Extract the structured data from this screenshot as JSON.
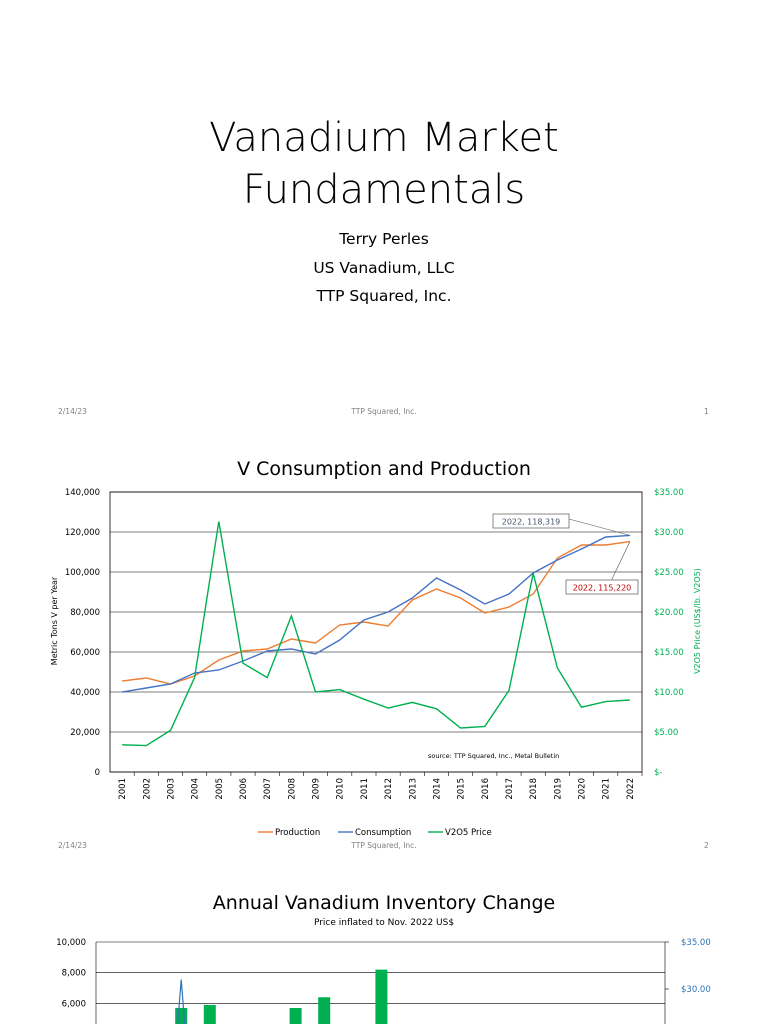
{
  "slide1": {
    "title_line1": "Vanadium Market",
    "title_line2": "Fundamentals",
    "author": "Terry Perles",
    "company1": "US Vanadium, LLC",
    "company2": "TTP Squared, Inc.",
    "footer_date": "2/14/23",
    "footer_center": "TTP Squared, Inc.",
    "footer_page": "1"
  },
  "slide2": {
    "title": "V Consumption and Production",
    "footer_date": "2/14/23",
    "footer_center": "TTP Squared, Inc.",
    "footer_page": "2"
  },
  "slide3": {
    "title": "Annual Vanadium Inventory Change",
    "subtitle": "Price inflated to Nov. 2022 US$"
  },
  "chart_data": [
    {
      "type": "line",
      "title": "V Consumption and Production",
      "ylabel": "Metric Tons V per Year",
      "y2label": "V2O5 Price (US$/lb. V2O5)",
      "ylim": [
        0,
        140000
      ],
      "y2lim": [
        0,
        35
      ],
      "yticks": [
        "140,000",
        "120,000",
        "100,000",
        "80,000",
        "60,000",
        "40,000",
        "20,000",
        "0"
      ],
      "y2ticks": [
        "$35.00",
        "$30.00",
        "$25.00",
        "$20.00",
        "$15.00",
        "$10.00",
        "$5.00",
        "$-"
      ],
      "x": [
        "2001",
        "2002",
        "2003",
        "2004",
        "2005",
        "2006",
        "2007",
        "2008",
        "2009",
        "2010",
        "2011",
        "2012",
        "2013",
        "2014",
        "2015",
        "2016",
        "2017",
        "2018",
        "2019",
        "2020",
        "2021",
        "2022"
      ],
      "series": [
        {
          "name": "Production",
          "axis": "left",
          "color": "#ED7D31",
          "values": [
            45500,
            47000,
            44000,
            48000,
            56000,
            60500,
            61500,
            66500,
            64500,
            73500,
            75000,
            73000,
            86000,
            91500,
            87000,
            79500,
            82500,
            89000,
            107000,
            113500,
            113500,
            115220
          ]
        },
        {
          "name": "Consumption",
          "axis": "left",
          "color": "#4472C4",
          "values": [
            40000,
            42000,
            44000,
            49500,
            51000,
            55500,
            60500,
            61500,
            59000,
            66000,
            76000,
            80000,
            87000,
            97000,
            91000,
            84000,
            89000,
            99500,
            106000,
            111500,
            117500,
            118319
          ]
        },
        {
          "name": "V2O5 Price",
          "axis": "right",
          "color": "#00B050",
          "values": [
            3.4,
            3.3,
            5.2,
            11.8,
            31.3,
            13.6,
            11.8,
            19.5,
            10.0,
            10.3,
            9.1,
            8.0,
            8.7,
            7.9,
            5.5,
            5.7,
            10.2,
            24.8,
            13.0,
            8.1,
            8.8,
            9.0
          ]
        }
      ],
      "annotations": [
        {
          "text": "2022,  118,319",
          "series": "Consumption",
          "x": "2022",
          "color": "#44546A"
        },
        {
          "text": "2022,  115,220",
          "series": "Production",
          "x": "2022",
          "color": "#C00000"
        }
      ],
      "source_note": "source:  TTP Squared, Inc., Metal Bulletin",
      "legend_position": "bottom",
      "accent_colors": {
        "y2_axis": "#00B050"
      }
    },
    {
      "type": "bar",
      "title": "Annual Vanadium Inventory Change",
      "subtitle": "Price inflated to Nov. 2022 US$",
      "yticks_visible": [
        "10,000",
        "8,000",
        "6,000"
      ],
      "y2ticks_visible": [
        "$35.00",
        "$30.00"
      ],
      "ylim_visible": [
        5200,
        10000
      ],
      "y2lim_visible": [
        25.5,
        35
      ],
      "bar_color": "#00B050",
      "line_color": "#2E75B6",
      "bars_visible": [
        {
          "index": 2,
          "value": 5700
        },
        {
          "index": 3,
          "value": 5900
        },
        {
          "index": 6,
          "value": 5700
        },
        {
          "index": 7,
          "value": 6400
        },
        {
          "index": 9,
          "value": 8200
        }
      ],
      "line_visible": [
        {
          "index": 2,
          "value": 31.0
        }
      ]
    }
  ]
}
